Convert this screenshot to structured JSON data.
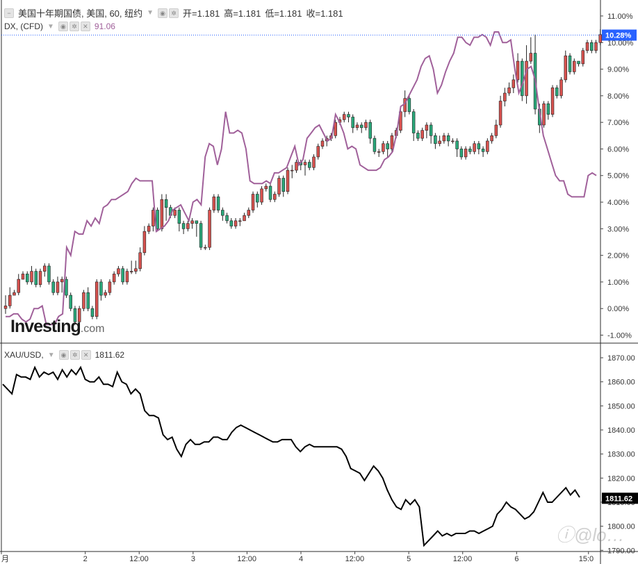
{
  "header": {
    "main_symbol": "美国十年期国债, 美国, 60, 纽约",
    "ohlc": [
      {
        "label": "开=",
        "value": "1.181"
      },
      {
        "label": "高=",
        "value": "1.181"
      },
      {
        "label": "低=",
        "value": "1.181"
      },
      {
        "label": "收=",
        "value": "1.181"
      }
    ],
    "overlay_symbol": "DX, (CFD)",
    "overlay_value": "91.06",
    "lower_symbol": "XAU/USD,",
    "lower_value": "1811.62"
  },
  "logo": {
    "text": "Investing",
    "suffix": ".com"
  },
  "watermark": {
    "text": "ⓘ@lo…"
  },
  "colors": {
    "up": "#d7524f",
    "down": "#2aa87a",
    "dx_line": "#a0609a",
    "gold_line": "#000000",
    "last_label_bg": "#2962ff"
  },
  "chart_data": [
    {
      "type": "candlestick",
      "title": "美国十年期国债, 美国, 60, 纽约",
      "y_unit": "%",
      "ylim": [
        -1.3,
        11.6
      ],
      "yticks": [
        "11.00%",
        "10.00%",
        "9.00%",
        "8.00%",
        "7.00%",
        "6.00%",
        "5.00%",
        "4.00%",
        "3.00%",
        "2.00%",
        "1.00%",
        "0.00%",
        "-1.00%"
      ],
      "last_value_label": "10.28%",
      "candles": [
        [
          0.0,
          0.1,
          0.5,
          -0.2
        ],
        [
          0.1,
          0.5,
          0.8,
          0.0
        ],
        [
          0.5,
          0.6,
          0.7,
          0.5
        ],
        [
          0.6,
          1.1,
          1.3,
          0.5
        ],
        [
          1.1,
          1.3,
          1.4,
          1.2
        ],
        [
          1.3,
          1.0,
          1.4,
          0.9
        ],
        [
          1.0,
          1.4,
          1.6,
          0.9
        ],
        [
          1.4,
          0.9,
          1.5,
          0.8
        ],
        [
          0.9,
          1.4,
          1.5,
          0.8
        ],
        [
          1.4,
          1.6,
          1.7,
          1.2
        ],
        [
          1.6,
          1.0,
          1.7,
          0.9
        ],
        [
          1.0,
          0.6,
          1.1,
          0.5
        ],
        [
          0.6,
          1.0,
          1.2,
          0.5
        ],
        [
          1.0,
          1.1,
          1.2,
          0.6
        ],
        [
          1.1,
          0.5,
          1.2,
          0.4
        ],
        [
          0.5,
          0.0,
          0.6,
          -0.1
        ],
        [
          0.0,
          -0.5,
          0.1,
          -0.6
        ],
        [
          -0.5,
          0.0,
          0.1,
          -0.6
        ],
        [
          0.0,
          0.6,
          0.7,
          -0.1
        ],
        [
          0.6,
          0.0,
          0.8,
          -0.1
        ],
        [
          0.0,
          -0.3,
          0.1,
          -0.4
        ],
        [
          -0.3,
          1.0,
          1.1,
          -0.4
        ],
        [
          1.0,
          0.5,
          1.1,
          0.3
        ],
        [
          0.5,
          0.6,
          0.7,
          0.4
        ],
        [
          0.6,
          1.0,
          1.1,
          0.5
        ],
        [
          1.0,
          1.3,
          1.4,
          0.9
        ],
        [
          1.3,
          1.5,
          1.6,
          1.2
        ],
        [
          1.5,
          1.0,
          1.6,
          0.9
        ],
        [
          1.0,
          1.4,
          1.5,
          0.9
        ],
        [
          1.4,
          1.4,
          1.8,
          1.3
        ],
        [
          1.4,
          1.5,
          1.8,
          1.3
        ],
        [
          1.5,
          2.1,
          2.3,
          1.4
        ],
        [
          2.1,
          2.9,
          3.1,
          2.0
        ],
        [
          2.9,
          3.1,
          3.2,
          2.8
        ],
        [
          3.1,
          3.7,
          3.8,
          2.9
        ],
        [
          3.7,
          3.0,
          3.8,
          2.9
        ],
        [
          3.0,
          4.1,
          4.3,
          2.9
        ],
        [
          4.1,
          3.8,
          4.3,
          3.3
        ],
        [
          3.8,
          3.5,
          3.9,
          3.4
        ],
        [
          3.5,
          3.7,
          3.8,
          3.4
        ],
        [
          3.7,
          3.2,
          3.8,
          2.9
        ],
        [
          3.2,
          3.0,
          3.3,
          2.8
        ],
        [
          3.0,
          3.2,
          3.3,
          2.9
        ],
        [
          3.2,
          3.3,
          3.4,
          3.0
        ],
        [
          3.3,
          3.2,
          3.3,
          2.7
        ],
        [
          3.2,
          2.3,
          3.3,
          2.2
        ],
        [
          2.3,
          2.3,
          2.4,
          2.2
        ],
        [
          2.3,
          3.7,
          3.8,
          2.2
        ],
        [
          3.7,
          4.2,
          4.3,
          3.6
        ],
        [
          4.2,
          3.7,
          4.3,
          3.6
        ],
        [
          3.7,
          3.5,
          3.8,
          3.3
        ],
        [
          3.5,
          3.3,
          3.6,
          3.2
        ],
        [
          3.3,
          3.1,
          3.4,
          3.0
        ],
        [
          3.1,
          3.3,
          3.4,
          3.0
        ],
        [
          3.3,
          3.3,
          3.4,
          3.1
        ],
        [
          3.3,
          3.5,
          3.6,
          3.3
        ],
        [
          3.5,
          3.7,
          3.8,
          3.4
        ],
        [
          3.7,
          4.3,
          4.4,
          3.6
        ],
        [
          4.3,
          4.0,
          4.4,
          3.8
        ],
        [
          4.0,
          4.5,
          4.6,
          3.9
        ],
        [
          4.5,
          4.6,
          4.7,
          4.4
        ],
        [
          4.6,
          4.1,
          4.7,
          4.0
        ],
        [
          4.1,
          4.3,
          4.4,
          4.0
        ],
        [
          4.3,
          4.9,
          5.0,
          4.2
        ],
        [
          4.9,
          4.4,
          5.0,
          4.2
        ],
        [
          4.4,
          5.2,
          5.3,
          4.3
        ],
        [
          5.2,
          5.2,
          5.4,
          4.9
        ],
        [
          5.2,
          5.5,
          5.6,
          5.1
        ],
        [
          5.5,
          5.4,
          5.6,
          5.2
        ],
        [
          5.4,
          5.5,
          5.6,
          5.0
        ],
        [
          5.5,
          5.3,
          5.6,
          5.2
        ],
        [
          5.3,
          5.7,
          5.8,
          5.2
        ],
        [
          5.7,
          6.1,
          6.2,
          5.6
        ],
        [
          6.1,
          6.3,
          6.4,
          6.0
        ],
        [
          6.3,
          6.4,
          6.5,
          6.1
        ],
        [
          6.4,
          6.5,
          6.6,
          6.3
        ],
        [
          6.5,
          7.0,
          7.1,
          6.4
        ],
        [
          7.0,
          7.1,
          7.2,
          6.9
        ],
        [
          7.1,
          7.3,
          7.4,
          7.0
        ],
        [
          7.3,
          7.2,
          7.4,
          7.0
        ],
        [
          7.2,
          6.8,
          7.3,
          6.6
        ],
        [
          6.8,
          6.9,
          7.0,
          6.7
        ],
        [
          6.9,
          6.8,
          7.0,
          6.6
        ],
        [
          6.8,
          7.0,
          7.1,
          6.7
        ],
        [
          7.0,
          6.4,
          7.1,
          6.2
        ],
        [
          6.4,
          5.9,
          6.5,
          5.8
        ],
        [
          5.9,
          5.9,
          6.0,
          5.7
        ],
        [
          5.9,
          6.2,
          6.3,
          5.8
        ],
        [
          6.2,
          6.0,
          6.3,
          5.7
        ],
        [
          6.0,
          6.5,
          6.6,
          5.9
        ],
        [
          6.5,
          6.7,
          6.8,
          6.4
        ],
        [
          6.7,
          7.4,
          7.6,
          6.6
        ],
        [
          7.4,
          7.9,
          8.2,
          7.2
        ],
        [
          7.9,
          7.4,
          8.0,
          7.3
        ],
        [
          7.4,
          6.6,
          7.5,
          6.3
        ],
        [
          6.6,
          6.4,
          6.7,
          6.3
        ],
        [
          6.4,
          6.7,
          6.8,
          6.3
        ],
        [
          6.7,
          6.9,
          7.0,
          6.4
        ],
        [
          6.9,
          6.5,
          7.0,
          6.2
        ],
        [
          6.5,
          6.2,
          6.6,
          6.0
        ],
        [
          6.2,
          6.3,
          6.5,
          6.1
        ],
        [
          6.3,
          6.5,
          6.6,
          6.2
        ],
        [
          6.5,
          6.3,
          6.6,
          6.1
        ],
        [
          6.3,
          6.3,
          6.4,
          6.2
        ],
        [
          6.3,
          6.0,
          6.4,
          5.7
        ],
        [
          6.0,
          5.7,
          6.1,
          5.6
        ],
        [
          5.7,
          6.0,
          6.1,
          5.6
        ],
        [
          6.0,
          5.9,
          6.1,
          5.8
        ],
        [
          5.9,
          6.2,
          6.3,
          5.8
        ],
        [
          6.2,
          6.0,
          6.3,
          5.8
        ],
        [
          6.0,
          5.9,
          6.1,
          5.7
        ],
        [
          5.9,
          6.3,
          6.4,
          5.8
        ],
        [
          6.3,
          6.5,
          6.6,
          6.2
        ],
        [
          6.5,
          6.9,
          7.1,
          6.4
        ],
        [
          6.9,
          7.8,
          8.0,
          6.8
        ],
        [
          7.8,
          8.1,
          8.3,
          7.6
        ],
        [
          8.1,
          8.3,
          8.5,
          8.0
        ],
        [
          8.3,
          8.6,
          8.8,
          8.1
        ],
        [
          8.6,
          9.3,
          9.6,
          8.5
        ],
        [
          9.3,
          8.0,
          9.4,
          7.8
        ],
        [
          8.0,
          9.3,
          9.9,
          7.7
        ],
        [
          9.3,
          9.6,
          10.2,
          9.2
        ],
        [
          9.6,
          7.5,
          10.3,
          7.3
        ],
        [
          7.5,
          6.9,
          7.7,
          6.6
        ],
        [
          6.9,
          7.7,
          7.8,
          6.8
        ],
        [
          7.7,
          7.3,
          7.8,
          7.1
        ],
        [
          7.3,
          8.3,
          8.4,
          7.2
        ],
        [
          8.3,
          8.0,
          8.4,
          7.9
        ],
        [
          8.0,
          8.6,
          8.7,
          7.9
        ],
        [
          8.6,
          9.5,
          9.7,
          8.5
        ],
        [
          9.5,
          8.9,
          9.6,
          8.8
        ],
        [
          8.9,
          9.3,
          9.4,
          8.8
        ],
        [
          9.3,
          9.2,
          9.3,
          9.1
        ],
        [
          9.2,
          9.7,
          9.8,
          9.1
        ],
        [
          9.7,
          10.0,
          10.1,
          9.6
        ],
        [
          10.0,
          9.7,
          10.1,
          9.6
        ],
        [
          9.7,
          10.0,
          10.1,
          9.6
        ],
        [
          10.0,
          10.3,
          10.5,
          9.9
        ]
      ],
      "overlay": {
        "name": "DX, (CFD)",
        "y_unit": "% (same axis)",
        "values": [
          -0.3,
          -0.3,
          -0.2,
          -0.2,
          -0.4,
          -0.5,
          -0.4,
          0.0,
          0.0,
          0.1,
          -0.6,
          -0.6,
          -0.6,
          -0.3,
          -0.2,
          2.3,
          2.0,
          2.9,
          2.8,
          2.8,
          3.3,
          3.1,
          3.4,
          3.2,
          3.8,
          3.9,
          4.1,
          4.1,
          4.2,
          4.3,
          4.4,
          4.7,
          4.9,
          4.8,
          4.8,
          4.8,
          4.8,
          2.9,
          3.0,
          3.1,
          3.3,
          3.7,
          3.8,
          3.9,
          3.6,
          3.3,
          4.0,
          4.1,
          3.9,
          5.7,
          6.2,
          6.1,
          5.4,
          6.0,
          7.4,
          6.6,
          6.6,
          6.7,
          6.6,
          6.0,
          4.8,
          4.7,
          4.7,
          4.7,
          4.8,
          4.7,
          5.1,
          5.1,
          5.2,
          5.3,
          5.7,
          6.1,
          5.4,
          5.6,
          6.4,
          6.6,
          6.8,
          6.9,
          6.6,
          6.3,
          6.4,
          7.3,
          7.0,
          6.6,
          6.0,
          6.1,
          6.0,
          5.4,
          5.3,
          5.2,
          5.2,
          5.2,
          5.3,
          5.6,
          5.7,
          5.9,
          6.6,
          7.6,
          7.7,
          8.0,
          8.3,
          8.6,
          9.1,
          9.4,
          9.5,
          9.0,
          8.1,
          8.4,
          8.9,
          9.3,
          9.6,
          10.2,
          10.2,
          10.0,
          9.9,
          10.2,
          10.2,
          10.3,
          10.2,
          9.9,
          10.4,
          10.4,
          10.0,
          10.0,
          10.1,
          9.0,
          8.1,
          8.5,
          9.0,
          9.1,
          8.6,
          7.5,
          6.5,
          6.0,
          5.5,
          5.0,
          4.8,
          4.8,
          4.3,
          4.2,
          4.2,
          4.2,
          4.2,
          5.0,
          5.1,
          5.0
        ]
      }
    },
    {
      "type": "line",
      "name": "XAU/USD",
      "ylim": [
        1789.5,
        1875.5
      ],
      "yticks": [
        "1870.00",
        "1860.00",
        "1850.00",
        "1840.00",
        "1830.00",
        "1820.00",
        "1810.00",
        "1800.00",
        "1790.00"
      ],
      "last_value_label": "1811.62",
      "values": [
        1859,
        1857,
        1855,
        1863,
        1862,
        1862,
        1861,
        1866,
        1862,
        1864,
        1863,
        1864,
        1861,
        1865,
        1862,
        1865,
        1863,
        1866,
        1861,
        1860,
        1860,
        1862,
        1859,
        1859,
        1858,
        1864,
        1860,
        1859,
        1855,
        1857,
        1855,
        1848,
        1846,
        1846,
        1845,
        1838,
        1836,
        1837,
        1832,
        1829,
        1834,
        1836,
        1834,
        1834,
        1835,
        1835,
        1837,
        1837,
        1836,
        1836,
        1839,
        1841,
        1842,
        1841,
        1840,
        1839,
        1838,
        1837,
        1836,
        1835,
        1835,
        1836,
        1836,
        1836,
        1833,
        1831,
        1833,
        1834,
        1833,
        1833,
        1833,
        1833,
        1833,
        1833,
        1832,
        1829,
        1824,
        1823,
        1822,
        1819,
        1822,
        1825,
        1823,
        1820,
        1815,
        1811,
        1808,
        1807,
        1811,
        1809,
        1811,
        1808,
        1792,
        1794,
        1796,
        1798,
        1796,
        1797,
        1796,
        1797,
        1797,
        1797,
        1798,
        1798,
        1797,
        1798,
        1799,
        1800,
        1805,
        1807,
        1810,
        1808,
        1807,
        1805,
        1803,
        1804,
        1806,
        1810,
        1814,
        1810,
        1810,
        1812,
        1814,
        1816,
        1813,
        1815,
        1812
      ]
    }
  ],
  "x_axis": {
    "labels": [
      {
        "text": "月",
        "pos": 0.0
      },
      {
        "text": "2",
        "pos": 0.14
      },
      {
        "text": "12:00",
        "pos": 0.23
      },
      {
        "text": "3",
        "pos": 0.32
      },
      {
        "text": "12:00",
        "pos": 0.41
      },
      {
        "text": "4",
        "pos": 0.5
      },
      {
        "text": "12:00",
        "pos": 0.59
      },
      {
        "text": "5",
        "pos": 0.68
      },
      {
        "text": "12:00",
        "pos": 0.77
      },
      {
        "text": "6",
        "pos": 0.86
      },
      {
        "text": "15:0",
        "pos": 0.98
      }
    ]
  }
}
